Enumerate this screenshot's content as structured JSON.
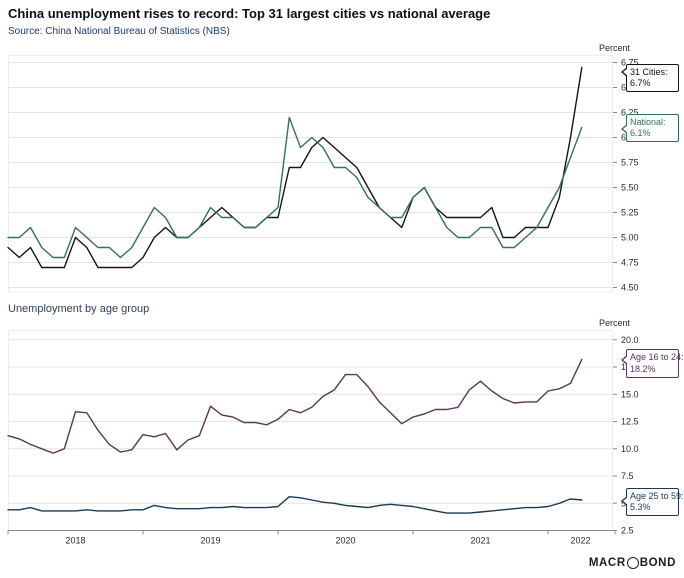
{
  "page": {
    "title": "China unemployment rises to record: Top 31 largest cities vs national average",
    "source": "Source: China National Bureau of Statistics (NBS)",
    "section2_title": "Unemployment by age group",
    "logo_pre": "MACR",
    "logo_o": "O",
    "logo_post": "BOND"
  },
  "colors": {
    "cities": "#151515",
    "national": "#34705f",
    "age_young": "#583758",
    "age_old": "#1c3a55",
    "grid": "#e4e4e4",
    "frame": "#ededed",
    "axis": "#8a8a8a",
    "tick_text": "#2b2b2b"
  },
  "x_axis": {
    "start": "2018-01",
    "end": "2022-04",
    "year_labels": [
      "2018",
      "2019",
      "2020",
      "2021",
      "2022"
    ]
  },
  "chart_data": [
    {
      "type": "line",
      "name": "top-31-cities-vs-national",
      "unit": "Percent",
      "ylim": [
        4.45,
        6.82
      ],
      "yticks": [
        4.5,
        4.75,
        5.0,
        5.25,
        5.5,
        5.75,
        6.0,
        6.25,
        6.5,
        6.75
      ],
      "ytick_decimals": 2,
      "grid": true,
      "x_monthly_start": "2018-01",
      "series": [
        {
          "name": "31 Cities",
          "color_key": "cities",
          "values": [
            4.9,
            4.8,
            4.9,
            4.7,
            4.7,
            4.7,
            5.0,
            4.9,
            4.7,
            4.7,
            4.7,
            4.7,
            4.8,
            5.0,
            5.1,
            5.0,
            5.0,
            5.1,
            5.2,
            5.3,
            5.2,
            5.1,
            5.1,
            5.2,
            5.2,
            5.7,
            5.7,
            5.9,
            6.0,
            5.9,
            5.8,
            5.7,
            5.5,
            5.3,
            5.2,
            5.1,
            5.4,
            5.5,
            5.3,
            5.2,
            5.2,
            5.2,
            5.2,
            5.3,
            5.0,
            5.0,
            5.1,
            5.1,
            5.1,
            5.4,
            6.0,
            6.7
          ]
        },
        {
          "name": "National",
          "color_key": "national",
          "values": [
            5.0,
            5.0,
            5.1,
            4.9,
            4.8,
            4.8,
            5.1,
            5.0,
            4.9,
            4.9,
            4.8,
            4.9,
            5.1,
            5.3,
            5.2,
            5.0,
            5.0,
            5.1,
            5.3,
            5.2,
            5.2,
            5.1,
            5.1,
            5.2,
            5.3,
            6.2,
            5.9,
            6.0,
            5.9,
            5.7,
            5.7,
            5.6,
            5.4,
            5.3,
            5.2,
            5.2,
            5.4,
            5.5,
            5.3,
            5.1,
            5.0,
            5.0,
            5.1,
            5.1,
            4.9,
            4.9,
            5.0,
            5.1,
            5.3,
            5.5,
            5.8,
            6.1
          ]
        }
      ],
      "callouts": [
        {
          "label": "31 Cities:",
          "value": "6.7%",
          "color_key": "cities"
        },
        {
          "label": "National:",
          "value": "6.1%",
          "color_key": "national"
        }
      ],
      "legend_position": "right-callouts"
    },
    {
      "type": "line",
      "name": "unemployment-by-age-group",
      "unit": "Percent",
      "ylim": [
        1.9,
        20.9
      ],
      "yticks": [
        2.5,
        5.0,
        7.5,
        10.0,
        12.5,
        15.0,
        17.5,
        20.0
      ],
      "ytick_decimals": 1,
      "grid": true,
      "x_monthly_start": "2018-01",
      "series": [
        {
          "name": "Age 16 to 24",
          "color_key": "age_young",
          "values": [
            11.2,
            10.9,
            10.4,
            10.0,
            9.6,
            10.0,
            13.4,
            13.3,
            11.7,
            10.4,
            9.7,
            9.9,
            11.3,
            11.1,
            11.4,
            9.9,
            10.8,
            11.2,
            13.9,
            13.1,
            12.9,
            12.4,
            12.4,
            12.2,
            12.7,
            13.6,
            13.3,
            13.8,
            14.8,
            15.4,
            16.8,
            16.8,
            15.7,
            14.3,
            13.3,
            12.3,
            12.9,
            13.2,
            13.6,
            13.6,
            13.8,
            15.4,
            16.2,
            15.3,
            14.6,
            14.2,
            14.3,
            14.3,
            15.3,
            15.5,
            16.0,
            18.2
          ]
        },
        {
          "name": "Age 25 to 59",
          "color_key": "age_old",
          "values": [
            4.4,
            4.4,
            4.6,
            4.3,
            4.3,
            4.3,
            4.3,
            4.4,
            4.3,
            4.3,
            4.3,
            4.4,
            4.4,
            4.8,
            4.6,
            4.5,
            4.5,
            4.5,
            4.6,
            4.6,
            4.7,
            4.6,
            4.6,
            4.6,
            4.7,
            5.6,
            5.5,
            5.3,
            5.1,
            5.0,
            4.8,
            4.7,
            4.6,
            4.8,
            4.9,
            4.8,
            4.7,
            4.5,
            4.3,
            4.1,
            4.1,
            4.1,
            4.2,
            4.3,
            4.4,
            4.5,
            4.6,
            4.6,
            4.7,
            5.0,
            5.4,
            5.3
          ]
        }
      ],
      "callouts": [
        {
          "label": "Age 16 to 24:",
          "value": "18.2%",
          "color_key": "age_young"
        },
        {
          "label": "Age 25 to 59:",
          "value": "5.3%",
          "color_key": "age_old"
        }
      ],
      "legend_position": "right-callouts"
    }
  ]
}
